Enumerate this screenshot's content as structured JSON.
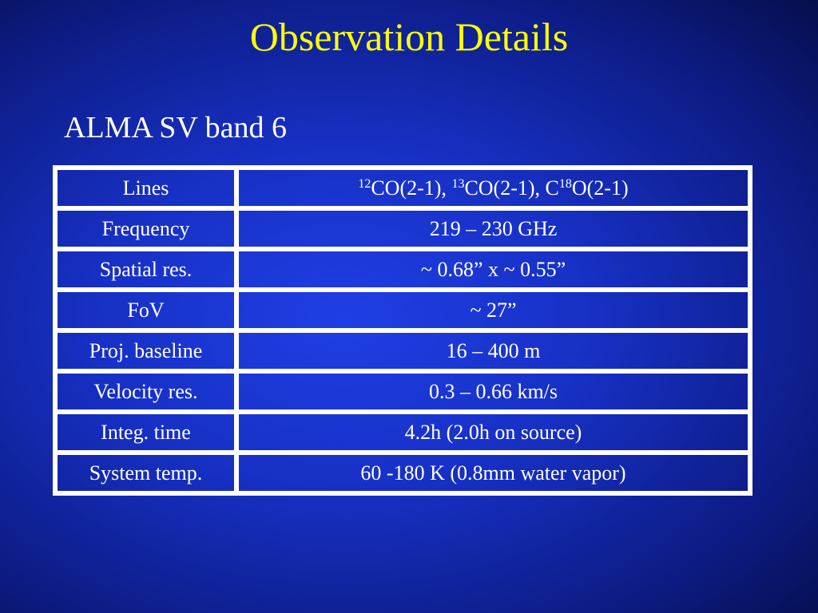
{
  "slide": {
    "title": "Observation Details",
    "subtitle": "ALMA SV band 6"
  },
  "lines": {
    "label": "Lines",
    "iso1": "12",
    "mol1": "CO(2-1), ",
    "iso2": "13",
    "mol2": "CO(2-1), C",
    "iso3": "18",
    "mol3": "O(2-1)"
  },
  "rows": [
    {
      "label": "Frequency",
      "value": "219 – 230 GHz"
    },
    {
      "label": "Spatial res.",
      "value": "~ 0.68” x ~ 0.55”"
    },
    {
      "label": "FoV",
      "value": "~ 27”"
    },
    {
      "label": "Proj. baseline",
      "value": "16 – 400 m"
    },
    {
      "label": "Velocity res.",
      "value": "0.3 – 0.66 km/s"
    },
    {
      "label": "Integ. time",
      "value": "4.2h (2.0h on source)"
    },
    {
      "label": "System temp.",
      "value": "60 -180 K (0.8mm water vapor)"
    }
  ],
  "colors": {
    "title": "#ffff00",
    "text": "#ffffff",
    "background": "#1730c4"
  }
}
